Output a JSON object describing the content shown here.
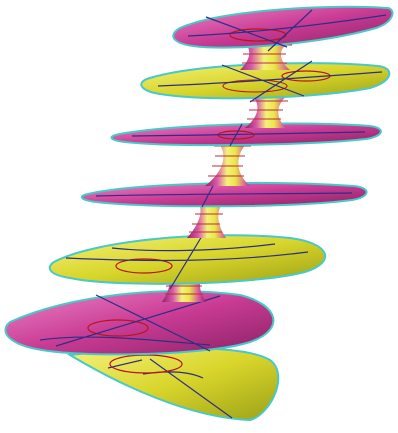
{
  "scene": {
    "subject": "minimal-surface-render",
    "colors": {
      "background": "#ffffff",
      "magenta": "#c93b94",
      "magenta_light": "#e679bd",
      "magenta_dark": "#8b2266",
      "yellow": "#d8d52b",
      "yellow_light": "#f1ee67",
      "yellow_dark": "#9da218",
      "edge_cyan": "#47c9c8",
      "mesh_blue": "#2c2f86",
      "mesh_red": "#b8151b",
      "neck_stripe_red": "#ba2f3b"
    }
  }
}
